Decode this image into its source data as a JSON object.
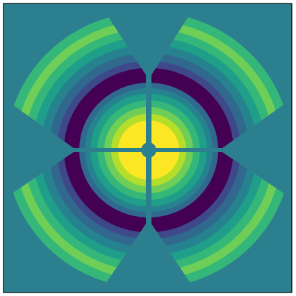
{
  "chart_data": {
    "type": "contour",
    "background": "#2c7f8e",
    "colors": [
      "#35b779",
      "#6ece58",
      "#35b779",
      "#1f9e89",
      "#26828e",
      "#31688e",
      "#3e4989",
      "#440154",
      "#31688e",
      "#26828e",
      "#1f9e89",
      "#35b779",
      "#6ece58",
      "#b5de2b",
      "#fde725"
    ]
  }
}
